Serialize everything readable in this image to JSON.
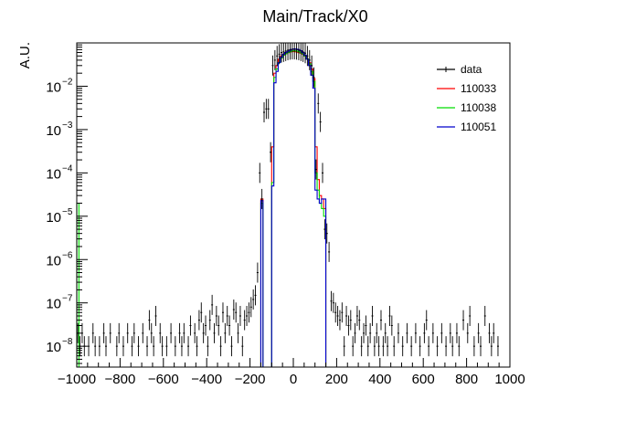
{
  "chart_data": {
    "type": "histogram",
    "title": "Main/Track/X0",
    "xlabel": "",
    "ylabel": "A.U.",
    "xlim": [
      -1000,
      1000
    ],
    "ylim": [
      3.3e-09,
      0.1
    ],
    "yscale": "log",
    "x_ticks": [
      -1000,
      -800,
      -600,
      -400,
      -200,
      0,
      200,
      400,
      600,
      800,
      1000
    ],
    "y_ticks": [
      {
        "base": "10",
        "exp": "-8",
        "value": 1e-08
      },
      {
        "base": "10",
        "exp": "-7",
        "value": 1e-07
      },
      {
        "base": "10",
        "exp": "-6",
        "value": 1e-06
      },
      {
        "base": "10",
        "exp": "-5",
        "value": 1e-05
      },
      {
        "base": "10",
        "exp": "-4",
        "value": 0.0001
      },
      {
        "base": "10",
        "exp": "-3",
        "value": 0.001
      },
      {
        "base": "10",
        "exp": "-2",
        "value": 0.01
      }
    ],
    "legend_position": "top-right",
    "bin_width": 10,
    "series": [
      {
        "name": "data",
        "color": "#000000",
        "kind": "points",
        "points": [
          [
            -995,
            2e-08
          ],
          [
            -985,
            1e-08
          ],
          [
            -975,
            2e-08
          ],
          [
            -965,
            1e-08
          ],
          [
            -945,
            1e-08
          ],
          [
            -925,
            2e-08
          ],
          [
            -915,
            1e-08
          ],
          [
            -895,
            1e-08
          ],
          [
            -875,
            2e-08
          ],
          [
            -865,
            1e-08
          ],
          [
            -845,
            2e-08
          ],
          [
            -815,
            1e-08
          ],
          [
            -805,
            2e-08
          ],
          [
            -785,
            1e-08
          ],
          [
            -765,
            2e-08
          ],
          [
            -745,
            1e-08
          ],
          [
            -735,
            2e-08
          ],
          [
            -715,
            1e-08
          ],
          [
            -695,
            2e-08
          ],
          [
            -675,
            1e-08
          ],
          [
            -665,
            4e-08
          ],
          [
            -655,
            2e-08
          ],
          [
            -645,
            1e-08
          ],
          [
            -635,
            5e-08
          ],
          [
            -615,
            2e-08
          ],
          [
            -605,
            1e-08
          ],
          [
            -585,
            1e-08
          ],
          [
            -565,
            2e-08
          ],
          [
            -545,
            1e-08
          ],
          [
            -525,
            2e-08
          ],
          [
            -515,
            1e-08
          ],
          [
            -505,
            2e-08
          ],
          [
            -485,
            1e-08
          ],
          [
            -475,
            3e-08
          ],
          [
            -455,
            2e-08
          ],
          [
            -445,
            1e-08
          ],
          [
            -435,
            4e-08
          ],
          [
            -425,
            6e-08
          ],
          [
            -415,
            2e-08
          ],
          [
            -405,
            3e-08
          ],
          [
            -395,
            1e-08
          ],
          [
            -385,
            4e-08
          ],
          [
            -375,
            9e-08
          ],
          [
            -365,
            2e-08
          ],
          [
            -355,
            5e-08
          ],
          [
            -345,
            3e-08
          ],
          [
            -335,
            1e-08
          ],
          [
            -325,
            6e-08
          ],
          [
            -315,
            2e-08
          ],
          [
            -305,
            5e-08
          ],
          [
            -295,
            3e-08
          ],
          [
            -285,
            1e-08
          ],
          [
            -275,
            7e-08
          ],
          [
            -265,
            6e-08
          ],
          [
            -255,
            2e-08
          ],
          [
            -245,
            5e-08
          ],
          [
            -235,
            1e-08
          ],
          [
            -225,
            4e-08
          ],
          [
            -215,
            5e-08
          ],
          [
            -205,
            6e-08
          ],
          [
            -195,
            8e-08
          ],
          [
            -185,
            1.2e-07
          ],
          [
            -175,
            1.5e-07
          ],
          [
            -165,
            5e-07
          ],
          [
            -155,
            0.0001
          ],
          [
            -145,
            2.5e-05
          ],
          [
            -135,
            0.0025
          ],
          [
            -125,
            0.003
          ],
          [
            -115,
            0.003
          ],
          [
            -105,
            0.0003
          ],
          [
            -95,
            0.03
          ],
          [
            -85,
            0.04
          ],
          [
            -75,
            0.05
          ],
          [
            -65,
            0.055
          ],
          [
            -55,
            0.06
          ],
          [
            -45,
            0.062
          ],
          [
            -35,
            0.065
          ],
          [
            -25,
            0.068
          ],
          [
            -15,
            0.07
          ],
          [
            -5,
            0.071
          ],
          [
            5,
            0.071
          ],
          [
            15,
            0.07
          ],
          [
            25,
            0.068
          ],
          [
            35,
            0.065
          ],
          [
            45,
            0.062
          ],
          [
            55,
            0.058
          ],
          [
            65,
            0.05
          ],
          [
            75,
            0.04
          ],
          [
            85,
            0.03
          ],
          [
            95,
            0.016
          ],
          [
            105,
            0.00012
          ],
          [
            115,
            0.004
          ],
          [
            125,
            0.0015
          ],
          [
            135,
            0.0001
          ],
          [
            145,
            5e-06
          ],
          [
            155,
            4e-06
          ],
          [
            165,
            1.5e-06
          ],
          [
            175,
            1.1e-07
          ],
          [
            185,
            1e-07
          ],
          [
            195,
            6e-08
          ],
          [
            205,
            5e-08
          ],
          [
            215,
            4e-08
          ],
          [
            225,
            6e-08
          ],
          [
            235,
            1e-08
          ],
          [
            245,
            5e-08
          ],
          [
            255,
            3e-08
          ],
          [
            265,
            4e-08
          ],
          [
            275,
            1e-08
          ],
          [
            285,
            2e-08
          ],
          [
            295,
            5e-08
          ],
          [
            305,
            4e-08
          ],
          [
            315,
            1e-08
          ],
          [
            325,
            2e-08
          ],
          [
            335,
            3e-08
          ],
          [
            345,
            1e-08
          ],
          [
            355,
            2e-08
          ],
          [
            365,
            5e-08
          ],
          [
            375,
            1e-08
          ],
          [
            385,
            2e-08
          ],
          [
            395,
            1e-08
          ],
          [
            405,
            4e-08
          ],
          [
            415,
            1e-08
          ],
          [
            425,
            2e-08
          ],
          [
            435,
            1e-08
          ],
          [
            445,
            5e-08
          ],
          [
            455,
            3e-08
          ],
          [
            465,
            1e-08
          ],
          [
            485,
            2e-08
          ],
          [
            505,
            1e-08
          ],
          [
            525,
            2e-08
          ],
          [
            545,
            1e-08
          ],
          [
            565,
            2e-08
          ],
          [
            585,
            1e-08
          ],
          [
            605,
            2e-08
          ],
          [
            615,
            4e-08
          ],
          [
            625,
            1e-08
          ],
          [
            645,
            2e-08
          ],
          [
            665,
            1e-08
          ],
          [
            685,
            2e-08
          ],
          [
            705,
            1e-08
          ],
          [
            725,
            2e-08
          ],
          [
            735,
            1e-08
          ],
          [
            755,
            2e-08
          ],
          [
            765,
            1e-08
          ],
          [
            785,
            4e-08
          ],
          [
            805,
            2e-08
          ],
          [
            815,
            5e-08
          ],
          [
            835,
            1e-08
          ],
          [
            855,
            2e-08
          ],
          [
            865,
            1e-08
          ],
          [
            885,
            5e-08
          ],
          [
            905,
            2e-08
          ],
          [
            915,
            1e-08
          ],
          [
            925,
            2e-08
          ],
          [
            945,
            1e-08
          ]
        ]
      },
      {
        "name": "110033",
        "color": "#ff0000",
        "kind": "step",
        "bins": [
          [
            -150,
            2.5e-05
          ],
          [
            -140,
            0
          ],
          [
            -130,
            0
          ],
          [
            -120,
            0
          ],
          [
            -110,
            0
          ],
          [
            -100,
            0.0004
          ],
          [
            -90,
            0.02
          ],
          [
            -80,
            0.03
          ],
          [
            -70,
            0.042
          ],
          [
            -60,
            0.05
          ],
          [
            -50,
            0.055
          ],
          [
            -40,
            0.058
          ],
          [
            -30,
            0.06
          ],
          [
            -20,
            0.062
          ],
          [
            -10,
            0.063
          ],
          [
            0,
            0.063
          ],
          [
            10,
            0.062
          ],
          [
            20,
            0.06
          ],
          [
            30,
            0.058
          ],
          [
            40,
            0.055
          ],
          [
            50,
            0.05
          ],
          [
            60,
            0.043
          ],
          [
            70,
            0.035
          ],
          [
            80,
            0.025
          ],
          [
            90,
            0.015
          ],
          [
            100,
            0.0004
          ],
          [
            110,
            7e-05
          ],
          [
            120,
            3e-05
          ],
          [
            130,
            2.5e-05
          ],
          [
            140,
            1.5e-05
          ],
          [
            150,
            0
          ]
        ]
      },
      {
        "name": "110038",
        "color": "#00dd00",
        "kind": "step",
        "bins": [
          [
            -1000,
            2e-05
          ],
          [
            -990,
            0
          ],
          [
            -150,
            2e-05
          ],
          [
            -140,
            0
          ],
          [
            -130,
            0
          ],
          [
            -120,
            0
          ],
          [
            -110,
            0
          ],
          [
            -100,
            6e-05
          ],
          [
            -90,
            0.016
          ],
          [
            -80,
            0.025
          ],
          [
            -70,
            0.035
          ],
          [
            -60,
            0.045
          ],
          [
            -50,
            0.052
          ],
          [
            -40,
            0.056
          ],
          [
            -30,
            0.06
          ],
          [
            -20,
            0.063
          ],
          [
            -10,
            0.065
          ],
          [
            0,
            0.066
          ],
          [
            10,
            0.065
          ],
          [
            20,
            0.063
          ],
          [
            30,
            0.06
          ],
          [
            40,
            0.056
          ],
          [
            50,
            0.05
          ],
          [
            60,
            0.043
          ],
          [
            70,
            0.033
          ],
          [
            80,
            0.022
          ],
          [
            90,
            0.013
          ],
          [
            100,
            0.0001
          ],
          [
            110,
            4e-05
          ],
          [
            120,
            2e-05
          ],
          [
            130,
            1.5e-05
          ],
          [
            140,
            1e-05
          ],
          [
            150,
            0
          ]
        ]
      },
      {
        "name": "110051",
        "color": "#0000cc",
        "kind": "step",
        "bins": [
          [
            -150,
            2.3e-05
          ],
          [
            -140,
            0
          ],
          [
            -130,
            0
          ],
          [
            -120,
            0
          ],
          [
            -110,
            0
          ],
          [
            -100,
            5e-05
          ],
          [
            -90,
            0.012
          ],
          [
            -80,
            0.022
          ],
          [
            -70,
            0.035
          ],
          [
            -60,
            0.047
          ],
          [
            -50,
            0.055
          ],
          [
            -40,
            0.06
          ],
          [
            -30,
            0.064
          ],
          [
            -20,
            0.068
          ],
          [
            -10,
            0.071
          ],
          [
            0,
            0.073
          ],
          [
            10,
            0.072
          ],
          [
            20,
            0.07
          ],
          [
            30,
            0.066
          ],
          [
            40,
            0.06
          ],
          [
            50,
            0.052
          ],
          [
            60,
            0.042
          ],
          [
            70,
            0.03
          ],
          [
            80,
            0.018
          ],
          [
            90,
            0.009
          ],
          [
            100,
            4e-05
          ],
          [
            110,
            2.5e-05
          ],
          [
            120,
            2e-05
          ],
          [
            130,
            2.5e-05
          ],
          [
            140,
            2.5e-05
          ],
          [
            150,
            0
          ]
        ]
      }
    ]
  }
}
